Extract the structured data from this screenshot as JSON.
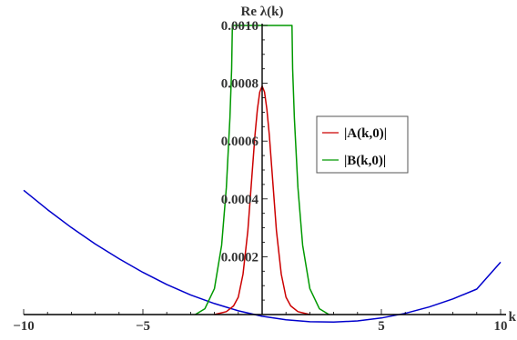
{
  "chart_data": {
    "type": "line",
    "ylabel": "Re λ(k)",
    "xlabel": "k",
    "xlim": [
      -10,
      10
    ],
    "ylim": [
      0,
      0.001
    ],
    "x_ticks": [
      {
        "value": -10,
        "label": "−10"
      },
      {
        "value": -5,
        "label": "−5"
      },
      {
        "value": 5,
        "label": "5"
      },
      {
        "value": 10,
        "label": "10"
      }
    ],
    "y_ticks": [
      {
        "value": 0.0002,
        "label": "0.0002"
      },
      {
        "value": 0.0004,
        "label": "0.0004"
      },
      {
        "value": 0.0006,
        "label": "0.0006"
      },
      {
        "value": 0.0008,
        "label": "0.0008"
      },
      {
        "value": 0.001,
        "label": "0.0010"
      }
    ],
    "legend": {
      "position": "right-middle"
    },
    "series": [
      {
        "name": "|A(k,0)|",
        "color": "#cc0000",
        "x": [
          -2.0,
          -1.5,
          -1.2,
          -1.0,
          -0.8,
          -0.6,
          -0.4,
          -0.3,
          -0.2,
          -0.1,
          0.0,
          0.1,
          0.2,
          0.3,
          0.4,
          0.6,
          0.8,
          1.0,
          1.2,
          1.5,
          2.0
        ],
        "y": [
          0.0,
          1e-05,
          3e-05,
          6e-05,
          0.00014,
          0.00029,
          0.00051,
          0.00062,
          0.00071,
          0.00077,
          0.00079,
          0.00077,
          0.00071,
          0.00062,
          0.00051,
          0.00029,
          0.00014,
          6e-05,
          3e-05,
          1e-05,
          0.0
        ]
      },
      {
        "name": "|B(k,0)|",
        "color": "#009900",
        "x": [
          -2.8,
          -2.4,
          -2.0,
          -1.7,
          -1.5,
          -1.35,
          -1.28,
          -1.25,
          1.25,
          1.28,
          1.35,
          1.5,
          1.7,
          2.0,
          2.4,
          2.8
        ],
        "y": [
          0.0,
          2e-05,
          9e-05,
          0.00024,
          0.00044,
          0.00068,
          0.00085,
          0.001,
          0.001,
          0.00085,
          0.00068,
          0.00044,
          0.00024,
          9e-05,
          2e-05,
          0.0
        ]
      },
      {
        "name": "Re λ(k)",
        "color": "#0000cc",
        "x": [
          -10,
          -9,
          -8,
          -7,
          -6,
          -5,
          -4,
          -3,
          -2,
          -1,
          0,
          1,
          2,
          3,
          4,
          5,
          6,
          7,
          8,
          9,
          10
        ],
        "y": [
          0.00043,
          0.000363,
          0.000301,
          0.000244,
          0.000193,
          0.000146,
          0.000104,
          6.8e-05,
          3.8e-05,
          1.3e-05,
          -6e-06,
          -1.8e-05,
          -2.5e-05,
          -2.6e-05,
          -2.2e-05,
          -1.2e-05,
          4e-06,
          2.6e-05,
          5.4e-05,
          8.8e-05,
          0.000181
        ]
      }
    ]
  }
}
